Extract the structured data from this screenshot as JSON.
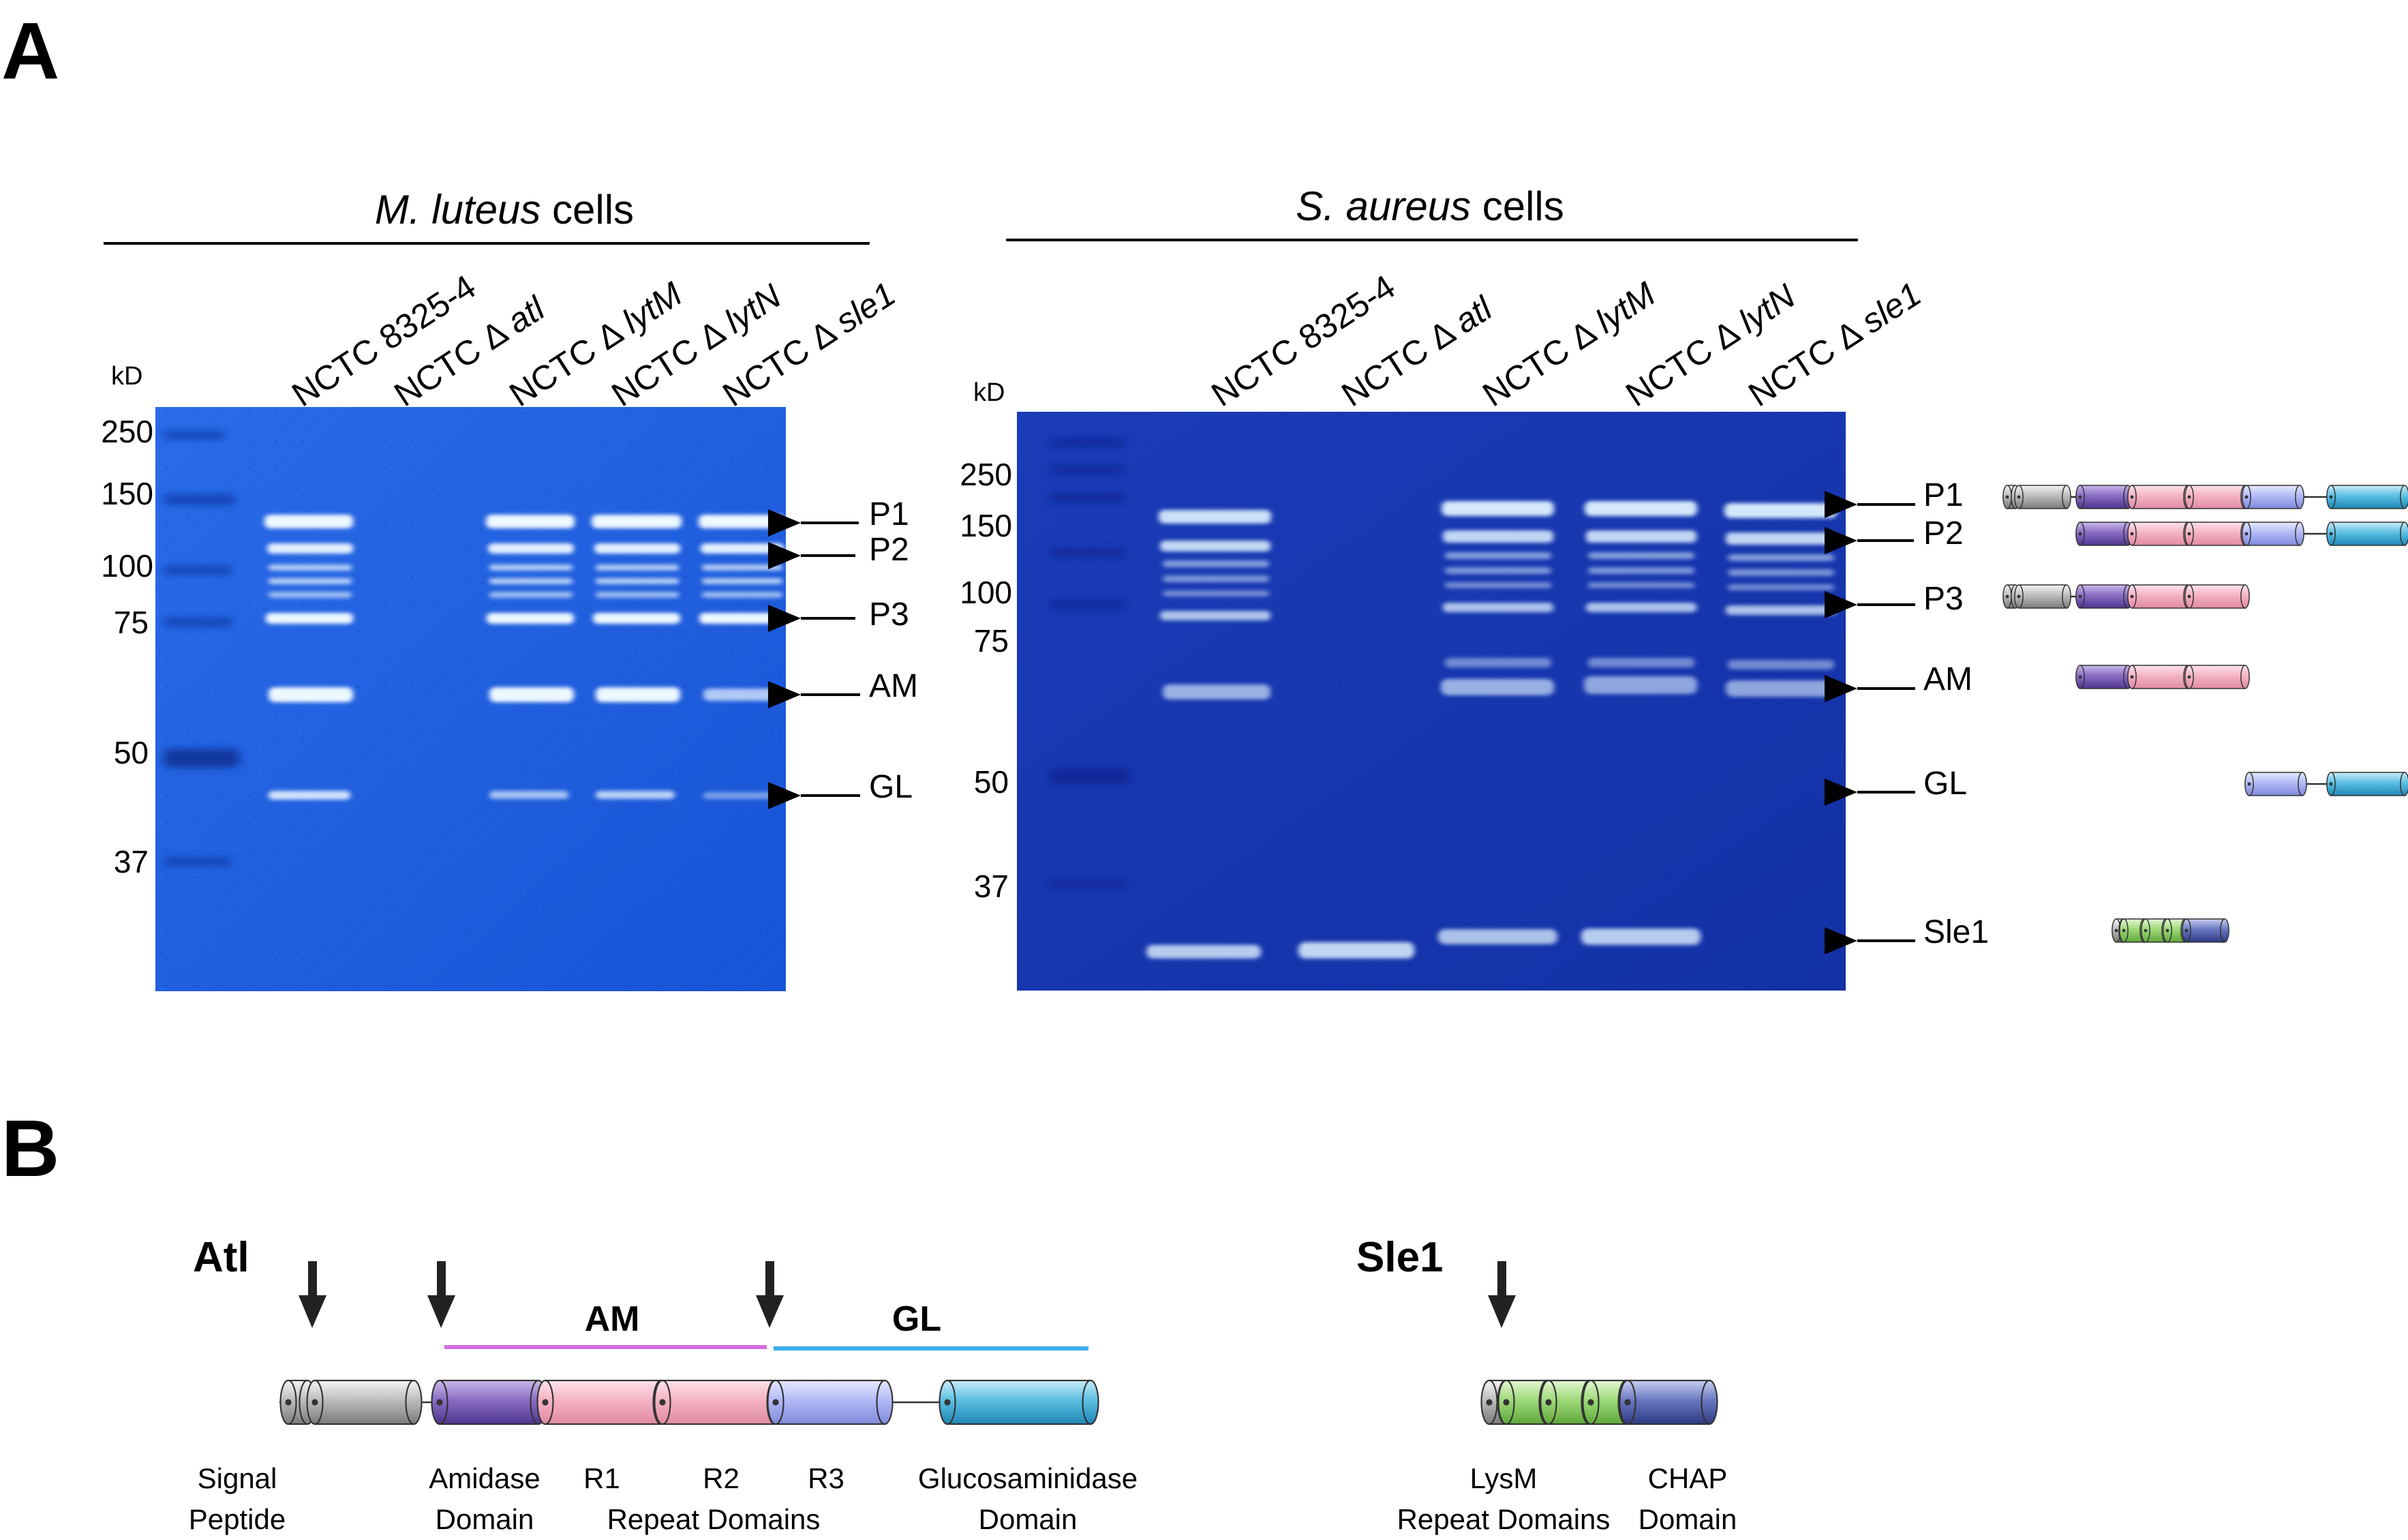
{
  "panel_a": {
    "label": "A",
    "left_gel": {
      "title_italic": "M. luteus",
      "title_rest": " cells",
      "kd_label": "kD",
      "ladder": [
        "250",
        "150",
        "100",
        "75",
        "50",
        "37"
      ],
      "lanes": [
        {
          "prefix": "NCTC 8325-4",
          "italic": ""
        },
        {
          "prefix": "NCTC Δ ",
          "italic": "atl"
        },
        {
          "prefix": "NCTC Δ ",
          "italic": "lytM"
        },
        {
          "prefix": "NCTC Δ ",
          "italic": "lytN"
        },
        {
          "prefix": "NCTC Δ ",
          "italic": "sle1"
        }
      ],
      "band_labels": [
        "P1",
        "P2",
        "P3",
        "AM",
        "GL"
      ]
    },
    "right_gel": {
      "title_italic": "S. aureus",
      "title_rest": " cells",
      "kd_label": "kD",
      "ladder": [
        "250",
        "150",
        "100",
        "75",
        "50",
        "37"
      ],
      "lanes": [
        {
          "prefix": "NCTC 8325-4",
          "italic": ""
        },
        {
          "prefix": "NCTC Δ ",
          "italic": "atl"
        },
        {
          "prefix": "NCTC Δ ",
          "italic": "lytM"
        },
        {
          "prefix": "NCTC Δ ",
          "italic": "lytN"
        },
        {
          "prefix": "NCTC Δ ",
          "italic": "sle1"
        }
      ],
      "band_labels": [
        "P1",
        "P2",
        "P3",
        "AM",
        "GL",
        "Sle1"
      ]
    }
  },
  "panel_b": {
    "label": "B",
    "atl": {
      "name": "Atl",
      "segment_am": "AM",
      "segment_gl": "GL",
      "domain_labels": {
        "signal_1": "Signal",
        "signal_2": "Peptide",
        "amidase_1": "Amidase",
        "amidase_2": "Domain",
        "r1": "R1",
        "r2": "R2",
        "r3": "R3",
        "repeat": "Repeat Domains",
        "gluc_1": "Glucosaminidase",
        "gluc_2": "Domain"
      }
    },
    "sle1": {
      "name": "Sle1",
      "domain_labels": {
        "lysm_1": "LysM",
        "lysm_2": "Repeat Domains",
        "chap_1": "CHAP",
        "chap_2": "Domain"
      }
    }
  },
  "colors": {
    "gel_left": "#1f5fe0",
    "gel_right": "#1636b0",
    "band": "#eaf6ff",
    "signal_grey": "#9a9a9a",
    "amidase_purple": "#7a5bb3",
    "repeat_pink": "#f3a9bb",
    "r3_lavender": "#a9b2f2",
    "gluc_cyan": "#41b3d8",
    "lysm_green": "#8fd16a",
    "chap_navy": "#4a5aa8",
    "am_bar": "#d36ee0",
    "gl_bar": "#3aaee8"
  }
}
